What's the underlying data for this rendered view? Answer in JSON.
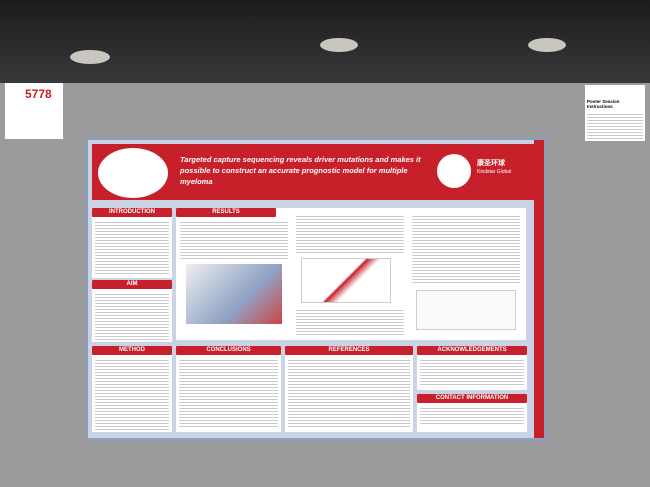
{
  "left_sign": {
    "number": "5778"
  },
  "right_sign": {
    "title": "Poster Session Instructions"
  },
  "poster": {
    "title": "Targeted capture sequencing reveals driver mutations and makes it possible to construct an accurate prognostic model for multiple myeloma",
    "logo_text": "康圣环球",
    "logo_subtext": "Kindstar Global",
    "sections": {
      "introduction": "INTRODUCTION",
      "aim": "AIM",
      "method": "METHOD",
      "results": "RESULTS",
      "conclusions": "CONCLUSIONS",
      "references": "REFERENCES",
      "acknowledgements": "ACKNOWLEDGEMENTS",
      "contact": "CONTACT INFORMATION"
    }
  }
}
